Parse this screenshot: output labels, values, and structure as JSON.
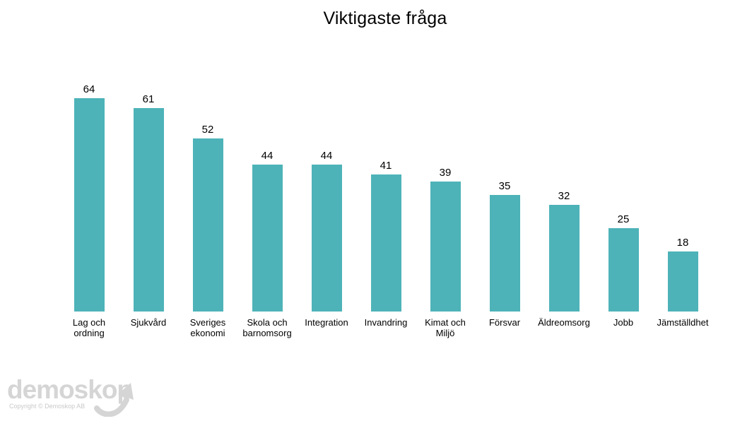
{
  "chart_data": {
    "type": "bar",
    "title": "Viktigaste fråga",
    "categories": [
      "Lag och ordning",
      "Sjukvård",
      "Sveriges ekonomi",
      "Skola och barnomsorg",
      "Integration",
      "Invandring",
      "Kimat och Miljö",
      "Försvar",
      "Äldreomsorg",
      "Jobb",
      "Jämställdhet"
    ],
    "values": [
      64,
      61,
      52,
      44,
      44,
      41,
      39,
      35,
      32,
      25,
      18
    ],
    "bar_color": "#4db3b8",
    "value_labels_shown": true,
    "xlabel": "",
    "ylabel": "",
    "ylim": [
      0,
      70
    ],
    "grid": false,
    "legend": false
  },
  "footer": {
    "logo_text": "demoskop",
    "copyright": "Copyright © Demoskop AB",
    "logo_color": "#d5d5d5"
  }
}
